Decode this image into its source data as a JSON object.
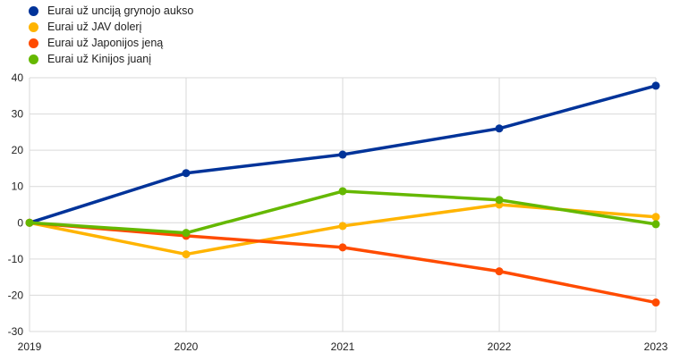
{
  "chart_data": {
    "type": "line",
    "title": "",
    "xlabel": "",
    "ylabel": "",
    "x": [
      "2019",
      "2020",
      "2021",
      "2022",
      "2023"
    ],
    "ylim": [
      -30,
      40
    ],
    "yticks": [
      40,
      30,
      20,
      10,
      0,
      -10,
      -20,
      -30
    ],
    "grid": true,
    "legend_position": "top-left",
    "series": [
      {
        "name": "Eurai už unciją grynojo aukso",
        "color": "#003399",
        "values": [
          0,
          13.7,
          18.8,
          26.0,
          37.8
        ]
      },
      {
        "name": "Eurai už JAV dolerį",
        "color": "#FFB400",
        "values": [
          0,
          -8.7,
          -0.9,
          5.0,
          1.6
        ]
      },
      {
        "name": "Eurai už Japonijos jeną",
        "color": "#FF4B00",
        "values": [
          0,
          -3.6,
          -6.8,
          -13.4,
          -22.0
        ]
      },
      {
        "name": "Eurai už Kinijos juanį",
        "color": "#65B800",
        "values": [
          0,
          -2.8,
          8.7,
          6.3,
          -0.4
        ]
      }
    ]
  }
}
